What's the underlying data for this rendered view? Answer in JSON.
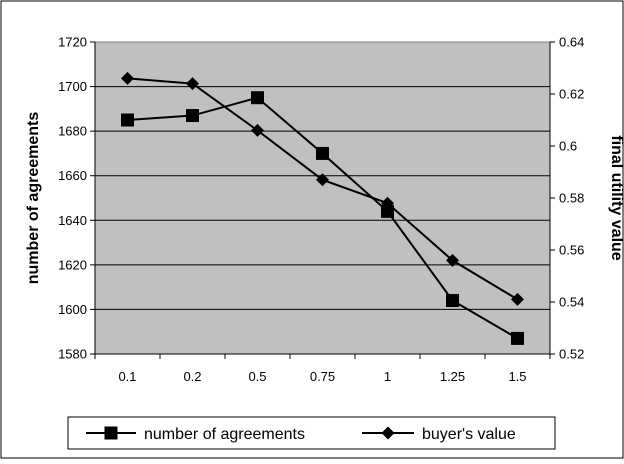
{
  "chart_data": {
    "type": "line",
    "categories": [
      "0.1",
      "0.2",
      "0.5",
      "0.75",
      "1",
      "1.25",
      "1.5"
    ],
    "y_left_label": "number of agreements",
    "y_right_label": "final utility value",
    "y_left_range": [
      1580,
      1720
    ],
    "y_left_ticks": [
      "1580",
      "1600",
      "1620",
      "1640",
      "1660",
      "1680",
      "1700",
      "1720"
    ],
    "y_right_range": [
      0.52,
      0.64
    ],
    "y_right_ticks": [
      "0.52",
      "0.54",
      "0.56",
      "0.58",
      "0.6",
      "0.62",
      "0.64"
    ],
    "grid": true,
    "plot_background": "#c0c0c0",
    "legend_position": "bottom",
    "series": [
      {
        "name": "number of agreements",
        "axis": "left",
        "marker": "square",
        "values": [
          1685,
          1687,
          1695,
          1670,
          1644,
          1604,
          1587
        ]
      },
      {
        "name": "buyer's value",
        "axis": "right",
        "marker": "diamond",
        "values": [
          0.626,
          0.624,
          0.606,
          0.587,
          0.578,
          0.556,
          0.541
        ]
      }
    ]
  }
}
